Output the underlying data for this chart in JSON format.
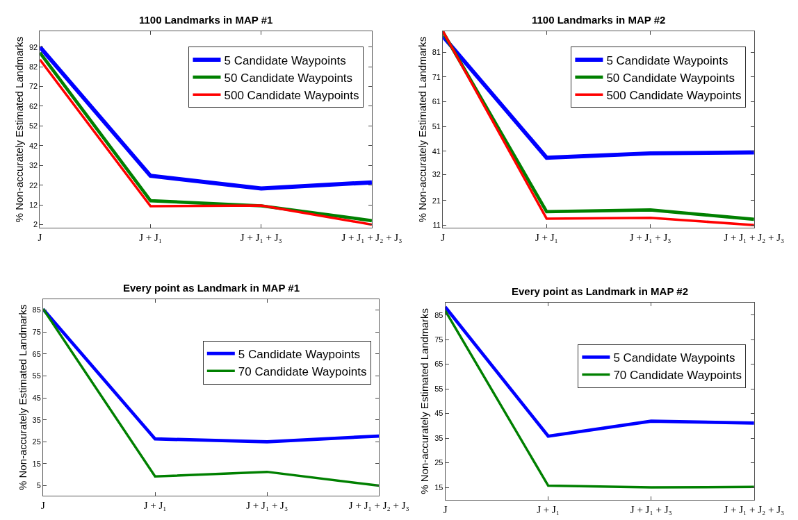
{
  "chart_data": [
    {
      "type": "line",
      "title": "1100 Landmarks in MAP #1",
      "ylabel": "% Non-accurately Estimated Landmarks",
      "categories": [
        "J",
        "J + J₁",
        "J + J₁ + J₃",
        "J + J₁ + J₂ + J₃"
      ],
      "ylim": [
        0.4,
        100
      ],
      "yticks": [
        2,
        12,
        22,
        32,
        42,
        52,
        62,
        72,
        82,
        92
      ],
      "legend": "top right",
      "line_style": "solid",
      "series": [
        {
          "name": "5 Candidate Waypoints",
          "color": "#0000ff",
          "values": [
            92,
            26.7,
            20.3,
            23.4
          ]
        },
        {
          "name": "50 Candidate Waypoints",
          "color": "#008000",
          "values": [
            89.1,
            14.1,
            11.5,
            4.0
          ]
        },
        {
          "name": "500 Candidate Waypoints",
          "color": "#ff0000",
          "values": [
            85.6,
            11.3,
            11.7,
            2.0
          ]
        }
      ]
    },
    {
      "type": "line",
      "title": "1100 Landmarks in MAP #2",
      "ylabel": "% Non-accurately Estimated Landmarks",
      "categories": [
        "J",
        "J + J₁",
        "J + J₁ + J₃",
        "J + J₁ + J₂ + J₃"
      ],
      "ylim": [
        10,
        89.5
      ],
      "yticks": [
        11,
        21,
        {
          "value": 31.5,
          "label": "32"
        },
        41,
        51,
        61,
        71,
        81
      ],
      "legend": "top right",
      "line_style": "solid",
      "series": [
        {
          "name": "5 Candidate Waypoints",
          "color": "#0000ff",
          "values": [
            87.5,
            38.3,
            40.1,
            40.5
          ]
        },
        {
          "name": "50 Candidate Waypoints",
          "color": "#008000",
          "values": [
            89.2,
            16.5,
            17.2,
            13.4
          ]
        },
        {
          "name": "500 Candidate Waypoints",
          "color": "#ff0000",
          "values": [
            89.5,
            13.7,
            14.0,
            11.1
          ]
        }
      ]
    },
    {
      "type": "line",
      "title": "Every point as Landmark in MAP #1",
      "ylabel": "% Non-accurately Estimated Landmarks",
      "categories": [
        "J",
        "J + J₁",
        "J + J₁ + J₃",
        "J + J₁ + J₂ + J₃"
      ],
      "ylim": [
        0.5,
        90
      ],
      "yticks": [
        5,
        15,
        25,
        35,
        45,
        55,
        65,
        75,
        85
      ],
      "legend": "top right",
      "line_style": "solid",
      "series": [
        {
          "name": "5 Candidate Waypoints",
          "color": "#0000ff",
          "values": [
            85.4,
            26.3,
            25.0,
            27.6
          ]
        },
        {
          "name": "70 Candidate Waypoints",
          "color": "#008000",
          "values": [
            85.5,
            9.2,
            11.3,
            5.0
          ]
        }
      ]
    },
    {
      "type": "line",
      "title": "Every point as Landmark in MAP #2",
      "ylabel": "% Non-accurately Estimated Landmarks",
      "categories": [
        "J",
        "J + J₁",
        "J + J₁ + J₃",
        "J + J₁ + J₂ + J₃"
      ],
      "ylim": [
        10,
        90
      ],
      "yticks": [
        15,
        25,
        35,
        45,
        55,
        65,
        75,
        85
      ],
      "legend": "top right",
      "line_style": "solid",
      "series": [
        {
          "name": "5 Candidate Waypoints",
          "color": "#0000ff",
          "values": [
            88.2,
            35.8,
            41.9,
            41.1
          ]
        },
        {
          "name": "70 Candidate Waypoints",
          "color": "#008000",
          "values": [
            86.7,
            15.7,
            15.0,
            15.2
          ]
        }
      ]
    }
  ]
}
